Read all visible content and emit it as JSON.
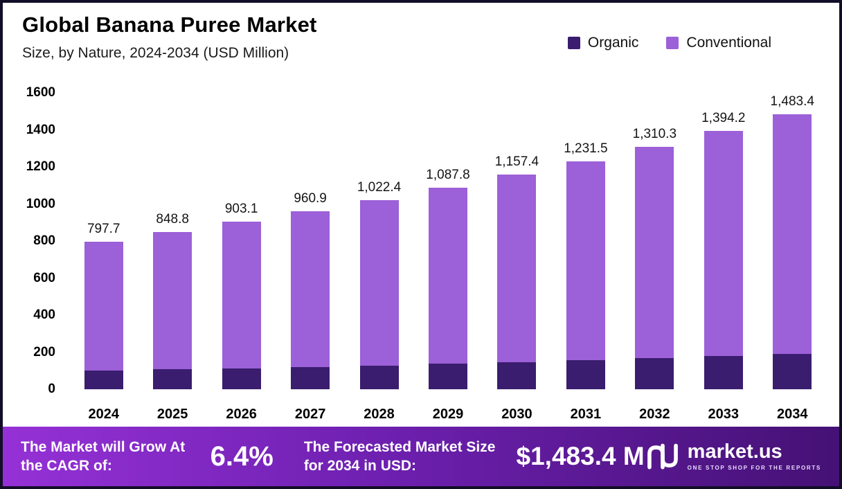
{
  "chart_data": {
    "type": "bar",
    "stacked": true,
    "title": "Global Banana Puree Market",
    "subtitle": "Size, by Nature, 2024-2034 (USD Million)",
    "categories": [
      "2024",
      "2025",
      "2026",
      "2027",
      "2028",
      "2029",
      "2030",
      "2031",
      "2032",
      "2033",
      "2034"
    ],
    "series": [
      {
        "name": "Organic",
        "color": "#3a1d6e",
        "values": [
          100,
          107,
          114,
          121,
          129,
          138,
          147,
          157,
          167,
          178,
          190
        ]
      },
      {
        "name": "Conventional",
        "color": "#9c60d8",
        "values": [
          697.7,
          741.8,
          789.1,
          839.9,
          893.4,
          949.8,
          1010.4,
          1074.5,
          1143.3,
          1216.2,
          1293.4
        ]
      }
    ],
    "totals": [
      797.7,
      848.8,
      903.1,
      960.9,
      1022.4,
      1087.8,
      1157.4,
      1231.5,
      1310.3,
      1394.2,
      1483.4
    ],
    "total_labels": [
      "797.7",
      "848.8",
      "903.1",
      "960.9",
      "1,022.4",
      "1,087.8",
      "1,157.4",
      "1,231.5",
      "1,310.3",
      "1,394.2",
      "1,483.4"
    ],
    "ylim": [
      0,
      1600
    ],
    "yticks": [
      0,
      200,
      400,
      600,
      800,
      1000,
      1200,
      1400,
      1600
    ],
    "xlabel": "",
    "ylabel": "",
    "grid": false,
    "legend_position": "top-right"
  },
  "footer": {
    "cagr_label": "The Market will Grow At the CAGR of:",
    "cagr_value": "6.4%",
    "forecast_label": "The Forecasted Market Size for 2034 in USD:",
    "forecast_value": "$1,483.4 M",
    "brand": "market.us",
    "brand_tagline": "ONE STOP SHOP FOR THE REPORTS"
  }
}
